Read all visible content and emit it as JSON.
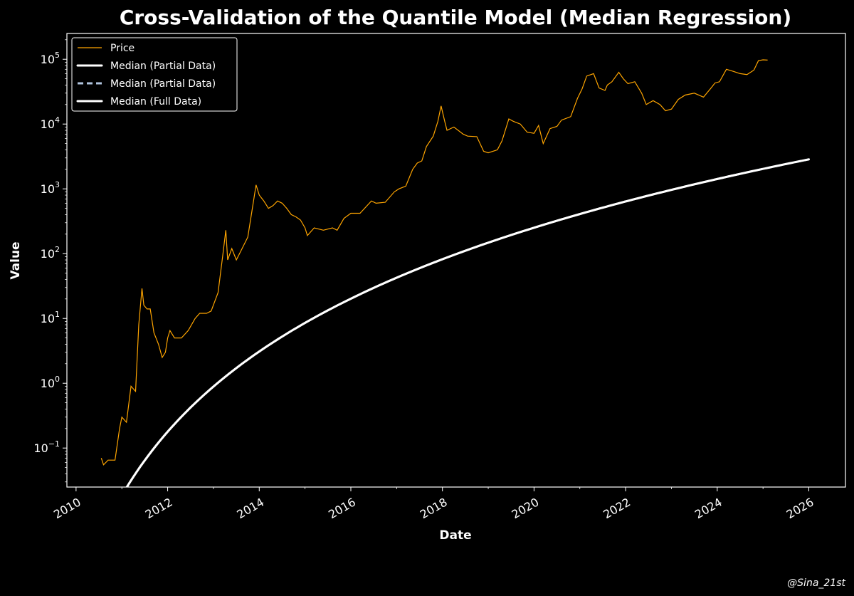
{
  "chart_data": {
    "type": "line",
    "title": "Cross-Validation of the Quantile Model (Median Regression)",
    "xlabel": "Date",
    "ylabel": "Value",
    "xlim": [
      2009.8,
      2026.8
    ],
    "ylim": [
      0.025,
      250000
    ],
    "yscale": "log",
    "grid": false,
    "legend_position": "top-left",
    "x_ticks": [
      "2010",
      "2012",
      "2014",
      "2016",
      "2018",
      "2020",
      "2022",
      "2024",
      "2026"
    ],
    "y_ticks": [
      {
        "base": "10",
        "exp": "−1",
        "value": 0.1
      },
      {
        "base": "10",
        "exp": "0",
        "value": 1
      },
      {
        "base": "10",
        "exp": "1",
        "value": 10
      },
      {
        "base": "10",
        "exp": "2",
        "value": 100
      },
      {
        "base": "10",
        "exp": "3",
        "value": 1000
      },
      {
        "base": "10",
        "exp": "4",
        "value": 10000
      },
      {
        "base": "10",
        "exp": "5",
        "value": 100000
      }
    ],
    "series": [
      {
        "name": "Price",
        "color": "#FFA500",
        "style": "solid-thin",
        "points": [
          [
            2010.55,
            0.07
          ],
          [
            2010.6,
            0.055
          ],
          [
            2010.7,
            0.065
          ],
          [
            2010.85,
            0.065
          ],
          [
            2010.95,
            0.2
          ],
          [
            2011.0,
            0.3
          ],
          [
            2011.1,
            0.25
          ],
          [
            2011.2,
            0.9
          ],
          [
            2011.3,
            0.75
          ],
          [
            2011.37,
            8
          ],
          [
            2011.44,
            29
          ],
          [
            2011.48,
            16
          ],
          [
            2011.55,
            14
          ],
          [
            2011.62,
            14
          ],
          [
            2011.7,
            6
          ],
          [
            2011.8,
            4
          ],
          [
            2011.88,
            2.5
          ],
          [
            2011.95,
            3
          ],
          [
            2012.0,
            5
          ],
          [
            2012.05,
            6.5
          ],
          [
            2012.15,
            5
          ],
          [
            2012.3,
            5
          ],
          [
            2012.45,
            6.5
          ],
          [
            2012.6,
            10
          ],
          [
            2012.7,
            12
          ],
          [
            2012.85,
            12
          ],
          [
            2012.95,
            13
          ],
          [
            2013.1,
            25
          ],
          [
            2013.2,
            90
          ],
          [
            2013.27,
            230
          ],
          [
            2013.31,
            80
          ],
          [
            2013.4,
            120
          ],
          [
            2013.5,
            80
          ],
          [
            2013.6,
            110
          ],
          [
            2013.75,
            180
          ],
          [
            2013.85,
            500
          ],
          [
            2013.93,
            1150
          ],
          [
            2014.0,
            800
          ],
          [
            2014.1,
            650
          ],
          [
            2014.2,
            500
          ],
          [
            2014.3,
            550
          ],
          [
            2014.4,
            650
          ],
          [
            2014.5,
            600
          ],
          [
            2014.6,
            500
          ],
          [
            2014.7,
            400
          ],
          [
            2014.8,
            370
          ],
          [
            2014.9,
            330
          ],
          [
            2015.0,
            250
          ],
          [
            2015.05,
            190
          ],
          [
            2015.2,
            250
          ],
          [
            2015.4,
            230
          ],
          [
            2015.6,
            250
          ],
          [
            2015.7,
            230
          ],
          [
            2015.85,
            350
          ],
          [
            2016.0,
            420
          ],
          [
            2016.2,
            420
          ],
          [
            2016.45,
            650
          ],
          [
            2016.55,
            600
          ],
          [
            2016.75,
            620
          ],
          [
            2016.95,
            900
          ],
          [
            2017.05,
            1000
          ],
          [
            2017.2,
            1100
          ],
          [
            2017.35,
            2000
          ],
          [
            2017.45,
            2500
          ],
          [
            2017.55,
            2700
          ],
          [
            2017.65,
            4500
          ],
          [
            2017.8,
            6500
          ],
          [
            2017.9,
            11000
          ],
          [
            2017.97,
            19000
          ],
          [
            2018.05,
            11000
          ],
          [
            2018.1,
            8000
          ],
          [
            2018.25,
            9000
          ],
          [
            2018.45,
            7000
          ],
          [
            2018.55,
            6500
          ],
          [
            2018.75,
            6400
          ],
          [
            2018.9,
            3800
          ],
          [
            2019.0,
            3600
          ],
          [
            2019.2,
            4000
          ],
          [
            2019.3,
            5500
          ],
          [
            2019.45,
            12000
          ],
          [
            2019.55,
            11000
          ],
          [
            2019.7,
            10000
          ],
          [
            2019.85,
            7500
          ],
          [
            2020.0,
            7200
          ],
          [
            2020.1,
            9500
          ],
          [
            2020.2,
            5000
          ],
          [
            2020.35,
            8500
          ],
          [
            2020.5,
            9200
          ],
          [
            2020.6,
            11500
          ],
          [
            2020.8,
            13000
          ],
          [
            2020.95,
            25000
          ],
          [
            2021.05,
            35000
          ],
          [
            2021.15,
            55000
          ],
          [
            2021.3,
            60000
          ],
          [
            2021.42,
            36000
          ],
          [
            2021.55,
            33000
          ],
          [
            2021.6,
            40000
          ],
          [
            2021.7,
            45000
          ],
          [
            2021.85,
            63000
          ],
          [
            2021.95,
            50000
          ],
          [
            2022.05,
            42000
          ],
          [
            2022.2,
            45000
          ],
          [
            2022.35,
            30000
          ],
          [
            2022.45,
            20000
          ],
          [
            2022.6,
            23000
          ],
          [
            2022.75,
            20000
          ],
          [
            2022.87,
            16000
          ],
          [
            2023.0,
            17000
          ],
          [
            2023.15,
            24000
          ],
          [
            2023.3,
            28000
          ],
          [
            2023.5,
            30000
          ],
          [
            2023.7,
            26000
          ],
          [
            2023.85,
            35000
          ],
          [
            2023.95,
            43000
          ],
          [
            2024.05,
            45000
          ],
          [
            2024.2,
            70000
          ],
          [
            2024.35,
            65000
          ],
          [
            2024.5,
            60000
          ],
          [
            2024.65,
            58000
          ],
          [
            2024.8,
            68000
          ],
          [
            2024.9,
            95000
          ],
          [
            2025.0,
            98000
          ],
          [
            2025.1,
            97000
          ]
        ]
      },
      {
        "name": "Median (Partial Data)",
        "color": "#FFFFFF",
        "style": "solid-thick",
        "model": {
          "a": 5.58,
          "b": -17.71,
          "origin_year": 2009.0,
          "x_start": 2010.55,
          "x_end": 2024.5
        }
      },
      {
        "name": "Median (Partial Data)",
        "color": "#B0C4DE",
        "style": "dashed",
        "model": {
          "a": 5.58,
          "b": -17.71,
          "origin_year": 2009.0,
          "x_start": 2024.0,
          "x_end": 2026.0
        }
      },
      {
        "name": "Median (Full Data)",
        "color": "#FFFFFF",
        "style": "solid-thick",
        "model": {
          "a": 5.58,
          "b": -17.71,
          "origin_year": 2009.0,
          "x_start": 2010.55,
          "x_end": 2026.0
        }
      }
    ]
  },
  "watermark": "@Sina_21st"
}
